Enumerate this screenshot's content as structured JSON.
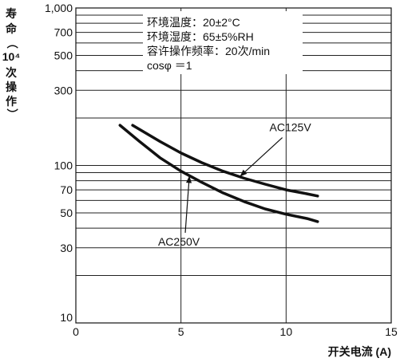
{
  "chart_data": {
    "type": "line",
    "xlabel": "开关电流 (A)",
    "ylabel_chars": [
      "寿",
      "命",
      "（",
      "10⁴",
      "次",
      "操",
      "作",
      "）"
    ],
    "xlim": [
      0,
      15
    ],
    "ylim": [
      10,
      1000
    ],
    "yscale": "log",
    "grid": true,
    "x_ticks": [
      {
        "v": 0,
        "label": "0"
      },
      {
        "v": 5,
        "label": "5"
      },
      {
        "v": 10,
        "label": "10"
      },
      {
        "v": 15,
        "label": "15"
      }
    ],
    "y_ticks": [
      {
        "v": 1000,
        "label": "1,000"
      },
      {
        "v": 700,
        "label": "700"
      },
      {
        "v": 500,
        "label": "500"
      },
      {
        "v": 300,
        "label": "300"
      },
      {
        "v": 100,
        "label": "100"
      },
      {
        "v": 70,
        "label": "70"
      },
      {
        "v": 50,
        "label": "50"
      },
      {
        "v": 30,
        "label": "30"
      },
      {
        "v": 10,
        "label": "10"
      }
    ],
    "y_grid": [
      1000,
      900,
      800,
      700,
      600,
      500,
      400,
      300,
      200,
      100,
      90,
      80,
      70,
      60,
      50,
      40,
      30,
      20
    ],
    "x_grid": [
      5,
      10
    ],
    "conditions": [
      "环境温度：20±2°C",
      "环境湿度：65±5%RH",
      "容许操作频率：20次/min",
      "cosφ ＝1"
    ],
    "series": [
      {
        "name": "AC125V",
        "x": [
          2.7,
          4,
          5,
          6,
          7,
          8,
          9,
          10,
          11,
          11.5
        ],
        "y": [
          180,
          142,
          120,
          104,
          92,
          83,
          76,
          70,
          66,
          64
        ]
      },
      {
        "name": "AC250V",
        "x": [
          2.1,
          3,
          4,
          5,
          6,
          7,
          8,
          9,
          10,
          11,
          11.5
        ],
        "y": [
          180,
          143,
          112,
          92,
          78,
          67,
          59,
          53,
          49,
          46,
          44
        ]
      }
    ],
    "annotations": [
      {
        "series": "AC125V",
        "text": "AC125V",
        "point": [
          7.8,
          85
        ],
        "label_at": [
          10.2,
          165
        ]
      },
      {
        "series": "AC250V",
        "text": "AC250V",
        "point": [
          5.4,
          86
        ],
        "label_at": [
          4.9,
          31
        ]
      }
    ]
  }
}
